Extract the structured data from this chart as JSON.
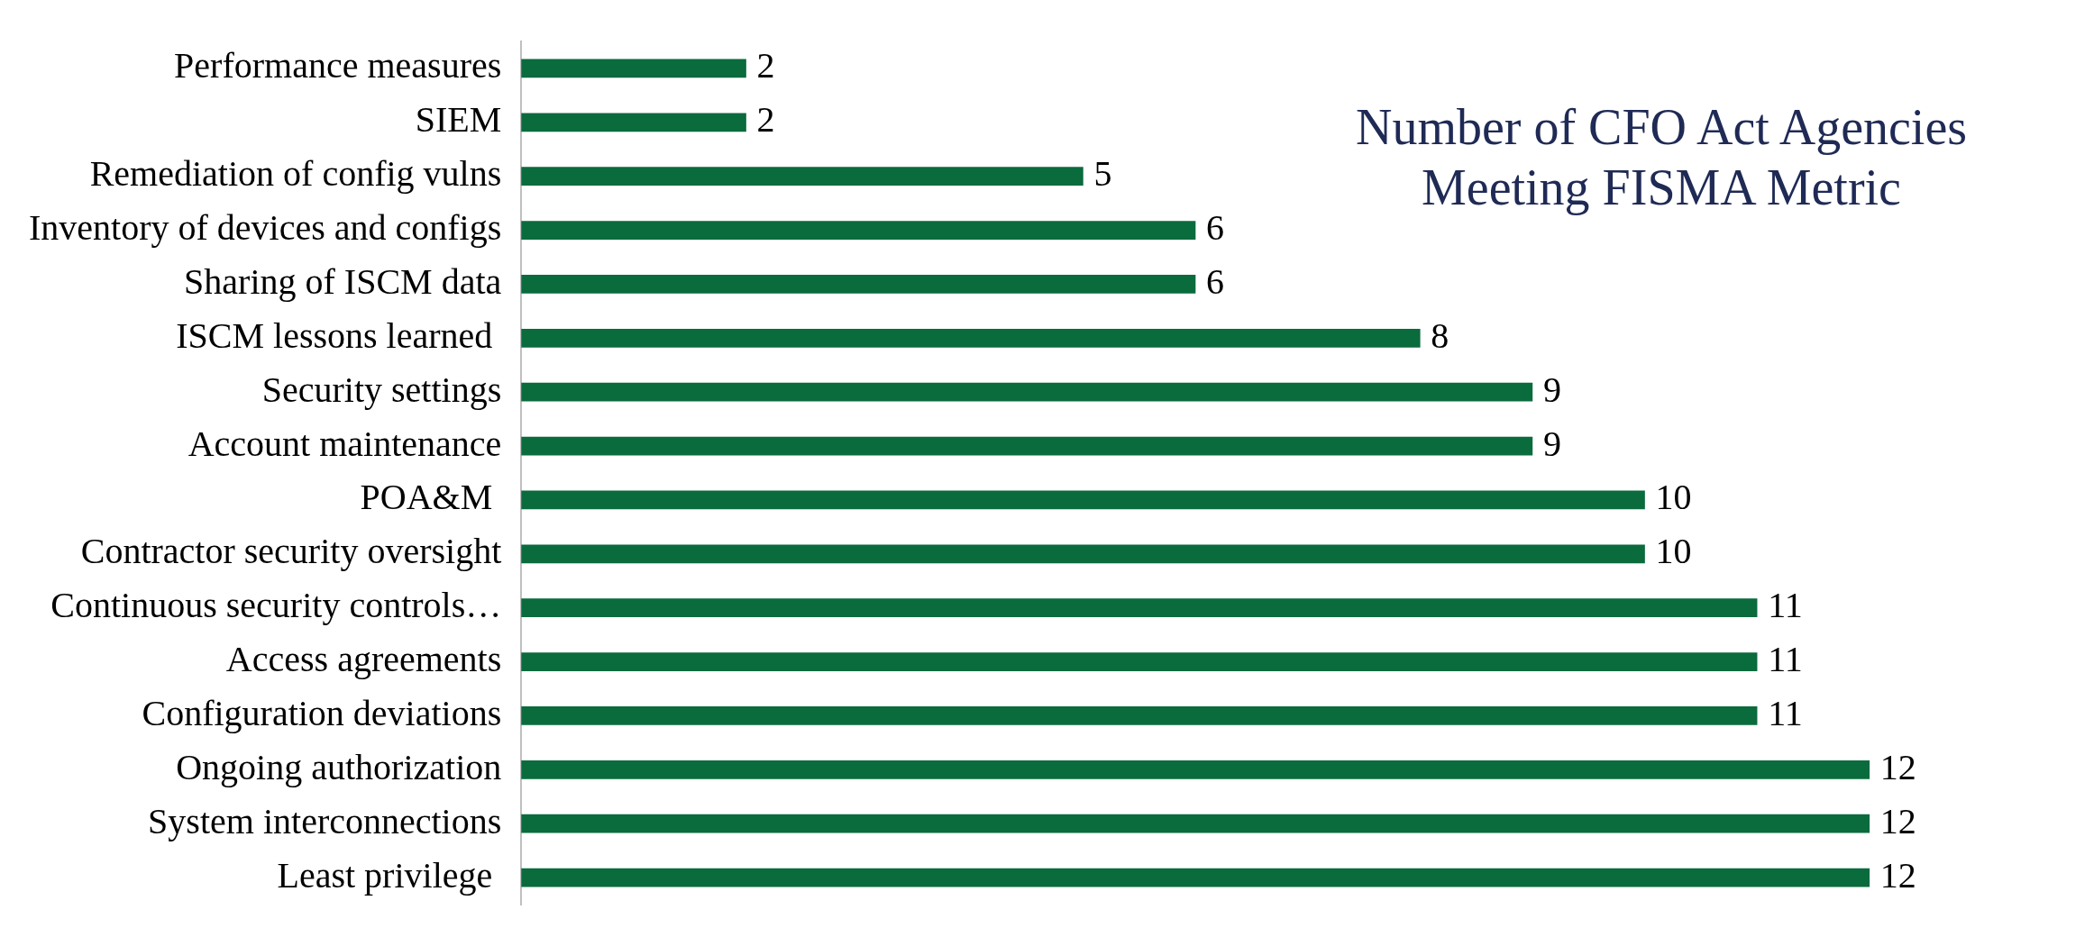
{
  "chart_data": {
    "type": "bar",
    "orientation": "horizontal",
    "title": "Number of CFO Act Agencies\nMeeting FISMA Metric",
    "categories": [
      "Performance measures",
      "SIEM",
      "Remediation of config vulns",
      "Inventory of devices and configs",
      "Sharing of ISCM data",
      "ISCM lessons learned ",
      "Security settings",
      "Account maintenance",
      "POA&M ",
      "Contractor security oversight",
      "Continuous security controls…",
      "Access agreements",
      "Configuration deviations",
      "Ongoing authorization",
      "System interconnections",
      "Least privilege "
    ],
    "values": [
      2,
      2,
      5,
      6,
      6,
      8,
      9,
      9,
      10,
      10,
      11,
      11,
      11,
      12,
      12,
      12
    ],
    "color": "#0a6b3d",
    "data_labels": true,
    "grid": false,
    "legend": false
  }
}
